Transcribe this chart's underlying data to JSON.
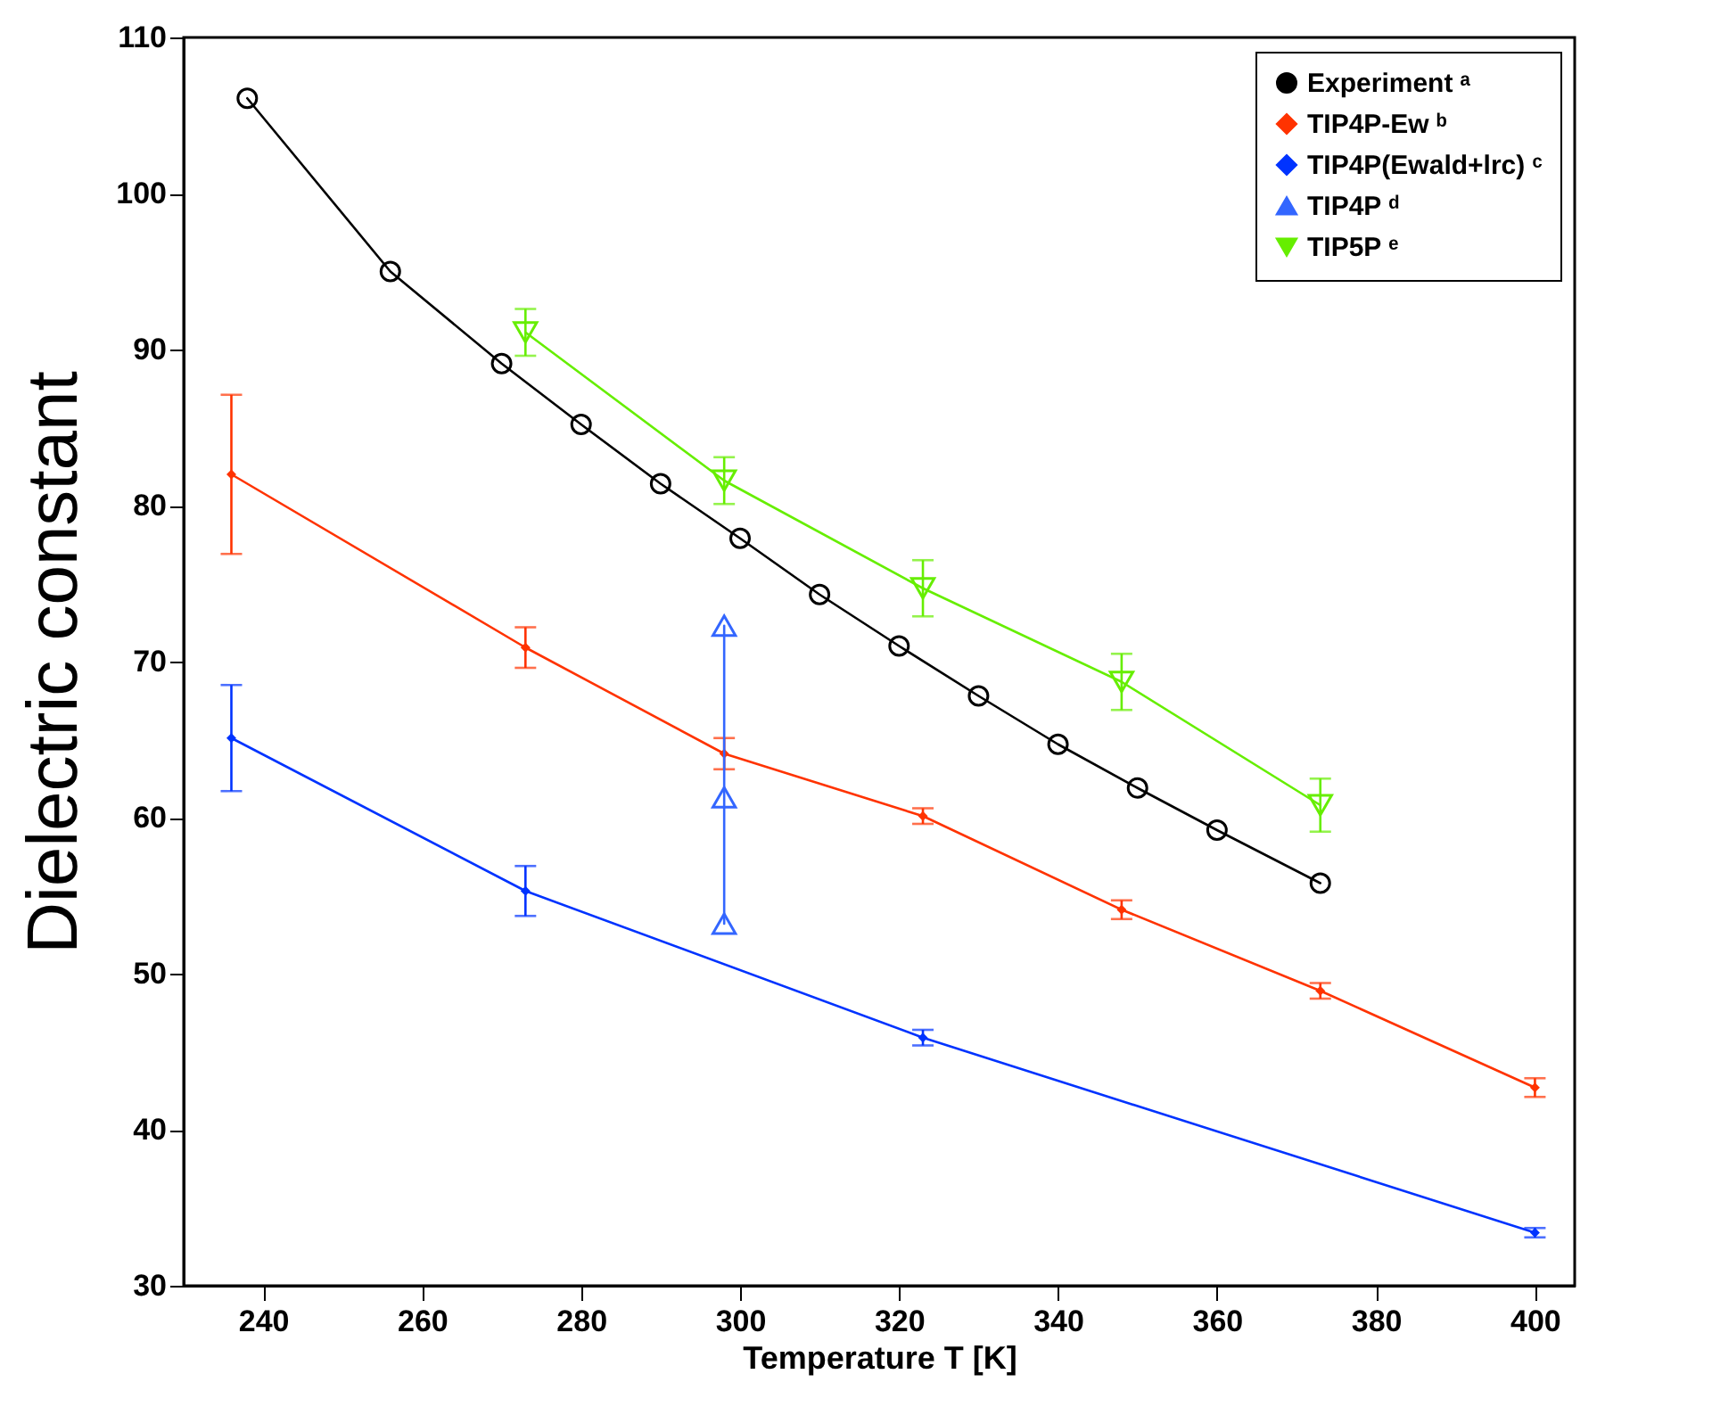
{
  "chart_data": {
    "type": "line",
    "xlabel": "Temperature T [K]",
    "ylabel": "Dielectric constant",
    "xlim": [
      230,
      405
    ],
    "ylim": [
      30,
      110
    ],
    "xticks": [
      240,
      260,
      280,
      300,
      320,
      340,
      360,
      380,
      400
    ],
    "yticks": [
      30,
      40,
      50,
      60,
      70,
      80,
      90,
      100,
      110
    ],
    "legend": "top right",
    "series": [
      {
        "name": "Experiment ᵃ",
        "color": "#000000",
        "marker": "circle",
        "x": [
          238,
          256,
          270,
          280,
          290,
          300,
          310,
          320,
          330,
          340,
          350,
          360,
          373
        ],
        "values": [
          106.1,
          95.0,
          89.1,
          85.2,
          81.4,
          77.9,
          74.3,
          71.0,
          67.8,
          64.7,
          61.9,
          59.2,
          55.8
        ]
      },
      {
        "name": "TIP4P-Ew ᵇ",
        "color": "#ff3300",
        "marker": "diamond",
        "x": [
          236,
          273,
          298,
          323,
          348,
          373,
          400
        ],
        "values": [
          82.0,
          70.9,
          64.1,
          60.1,
          54.1,
          48.9,
          42.7
        ],
        "errors": [
          5.1,
          1.3,
          1.0,
          0.5,
          0.6,
          0.5,
          0.6
        ]
      },
      {
        "name": "TIP4P(Ewald+lrc) ᶜ",
        "color": "#0033ff",
        "marker": "diamond",
        "x": [
          236,
          273,
          323,
          400
        ],
        "values": [
          65.1,
          55.3,
          45.9,
          33.4
        ],
        "errors": [
          3.4,
          1.6,
          0.5,
          0.3
        ]
      },
      {
        "name": "TIP4P ᵈ",
        "color": "#3366ff",
        "marker": "triangle",
        "x": [
          298,
          298,
          298
        ],
        "values": [
          72.3,
          61.3,
          53.2
        ]
      },
      {
        "name": "TIP5P ᵉ",
        "color": "#66ee00",
        "marker": "triangle-down",
        "x": [
          273,
          298,
          323,
          348,
          373
        ],
        "values": [
          91.1,
          81.6,
          74.7,
          68.7,
          60.8
        ],
        "errors": [
          1.5,
          1.5,
          1.8,
          1.8,
          1.7
        ]
      }
    ]
  }
}
